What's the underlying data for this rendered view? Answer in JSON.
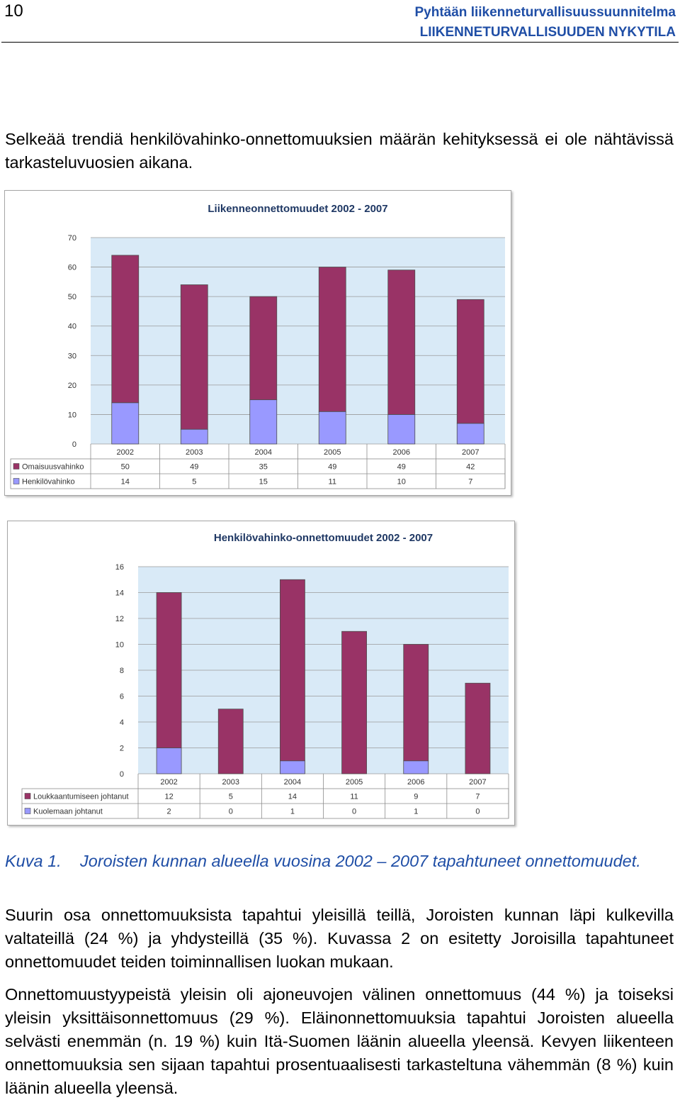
{
  "header": {
    "page_number": "10",
    "doc_title": "Pyhtään liikenneturvallisuussuunnitelma",
    "section_title": "LIIKENNETURVALLISUUDEN NYKYTILA"
  },
  "intro_text": "Selkeää trendiä henkilövahinko-onnettomuuksien määrän kehityksessä ei ole nähtävissä tarkasteluvuosien aikana.",
  "colors": {
    "maroon": "#993366",
    "lavender": "#9999ff",
    "plot_bg": "#d9eaf7",
    "heading": "#1f4ea6"
  },
  "chart_data": [
    {
      "type": "bar",
      "stacked": true,
      "title": "Liikenneonnettomuudet 2002 - 2007",
      "categories": [
        "2002",
        "2003",
        "2004",
        "2005",
        "2006",
        "2007"
      ],
      "ylim": [
        0,
        70
      ],
      "yticks": [
        "0",
        "10",
        "20",
        "30",
        "40",
        "50",
        "60",
        "70"
      ],
      "grid": true,
      "series": [
        {
          "name": "Henkilövahinko",
          "color": "#9999ff",
          "values": [
            14,
            5,
            15,
            11,
            10,
            7
          ]
        },
        {
          "name": "Omaisuusvahinko",
          "color": "#993366",
          "values": [
            50,
            49,
            35,
            49,
            49,
            42
          ]
        }
      ],
      "table_rows": [
        {
          "label": "Omaisuusvahinko",
          "color": "#993366",
          "values": [
            "50",
            "49",
            "35",
            "49",
            "49",
            "42"
          ]
        },
        {
          "label": "Henkilövahinko",
          "color": "#9999ff",
          "values": [
            "14",
            "5",
            "15",
            "11",
            "10",
            "7"
          ]
        }
      ]
    },
    {
      "type": "bar",
      "stacked": true,
      "title": "Henkilövahinko-onnettomuudet 2002 - 2007",
      "categories": [
        "2002",
        "2003",
        "2004",
        "2005",
        "2006",
        "2007"
      ],
      "ylim": [
        0,
        16
      ],
      "yticks": [
        "0",
        "2",
        "4",
        "6",
        "8",
        "10",
        "12",
        "14",
        "16"
      ],
      "grid": true,
      "series": [
        {
          "name": "Kuolemaan johtanut",
          "color": "#9999ff",
          "values": [
            2,
            0,
            1,
            0,
            1,
            0
          ]
        },
        {
          "name": "Loukkaantumiseen johtanut",
          "color": "#993366",
          "values": [
            12,
            5,
            14,
            11,
            9,
            7
          ]
        }
      ],
      "table_rows": [
        {
          "label": "Loukkaantumiseen johtanut",
          "color": "#993366",
          "values": [
            "12",
            "5",
            "14",
            "11",
            "9",
            "7"
          ]
        },
        {
          "label": "Kuolemaan johtanut",
          "color": "#9999ff",
          "values": [
            "2",
            "0",
            "1",
            "0",
            "1",
            "0"
          ]
        }
      ]
    }
  ],
  "caption": {
    "label": "Kuva 1.",
    "text": "Joroisten kunnan alueella vuosina 2002 – 2007 tapahtuneet onnettomuudet."
  },
  "body_paragraphs": [
    "Suurin osa onnettomuuksista tapahtui yleisillä teillä, Joroisten kunnan läpi kulkevilla valtateillä (24 %) ja yhdysteillä (35 %). Kuvassa 2 on esitetty Joroisilla tapahtuneet onnettomuudet teiden toiminnallisen luokan mukaan.",
    "Onnettomuustyypeistä yleisin oli ajoneuvojen välinen onnettomuus (44 %) ja toiseksi yleisin yksittäisonnettomuus (29 %). Eläinonnettomuuksia tapahtui Joroisten alueella selvästi enemmän (n. 19 %) kuin Itä-Suomen läänin alueella yleensä. Kevyen liikenteen onnettomuuksia sen sijaan tapahtui prosentuaalisesti tarkasteltuna vähemmän (8 %) kuin läänin alueella yleensä."
  ]
}
